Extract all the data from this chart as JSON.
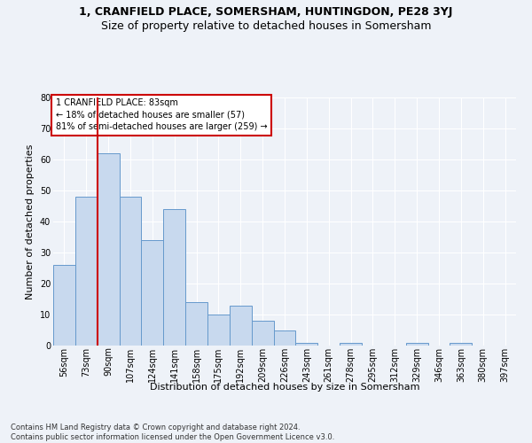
{
  "title1": "1, CRANFIELD PLACE, SOMERSHAM, HUNTINGDON, PE28 3YJ",
  "title2": "Size of property relative to detached houses in Somersham",
  "xlabel": "Distribution of detached houses by size in Somersham",
  "ylabel": "Number of detached properties",
  "categories": [
    "56sqm",
    "73sqm",
    "90sqm",
    "107sqm",
    "124sqm",
    "141sqm",
    "158sqm",
    "175sqm",
    "192sqm",
    "209sqm",
    "226sqm",
    "243sqm",
    "261sqm",
    "278sqm",
    "295sqm",
    "312sqm",
    "329sqm",
    "346sqm",
    "363sqm",
    "380sqm",
    "397sqm"
  ],
  "values": [
    26,
    48,
    62,
    48,
    34,
    44,
    14,
    10,
    13,
    8,
    5,
    1,
    0,
    1,
    0,
    0,
    1,
    0,
    1,
    0,
    0
  ],
  "bar_color": "#c8d9ee",
  "bar_edge_color": "#6699cc",
  "red_line_index": 1,
  "annotation_text": "1 CRANFIELD PLACE: 83sqm\n← 18% of detached houses are smaller (57)\n81% of semi-detached houses are larger (259) →",
  "ylim": [
    0,
    80
  ],
  "yticks": [
    0,
    10,
    20,
    30,
    40,
    50,
    60,
    70,
    80
  ],
  "footer": "Contains HM Land Registry data © Crown copyright and database right 2024.\nContains public sector information licensed under the Open Government Licence v3.0.",
  "bg_color": "#eef2f8",
  "grid_color": "#ffffff",
  "annotation_box_color": "#ffffff",
  "annotation_box_edge": "#cc0000",
  "red_line_color": "#cc0000",
  "title1_fontsize": 9,
  "title2_fontsize": 9,
  "ylabel_fontsize": 8,
  "xlabel_fontsize": 8,
  "tick_fontsize": 7,
  "annotation_fontsize": 7,
  "footer_fontsize": 6
}
